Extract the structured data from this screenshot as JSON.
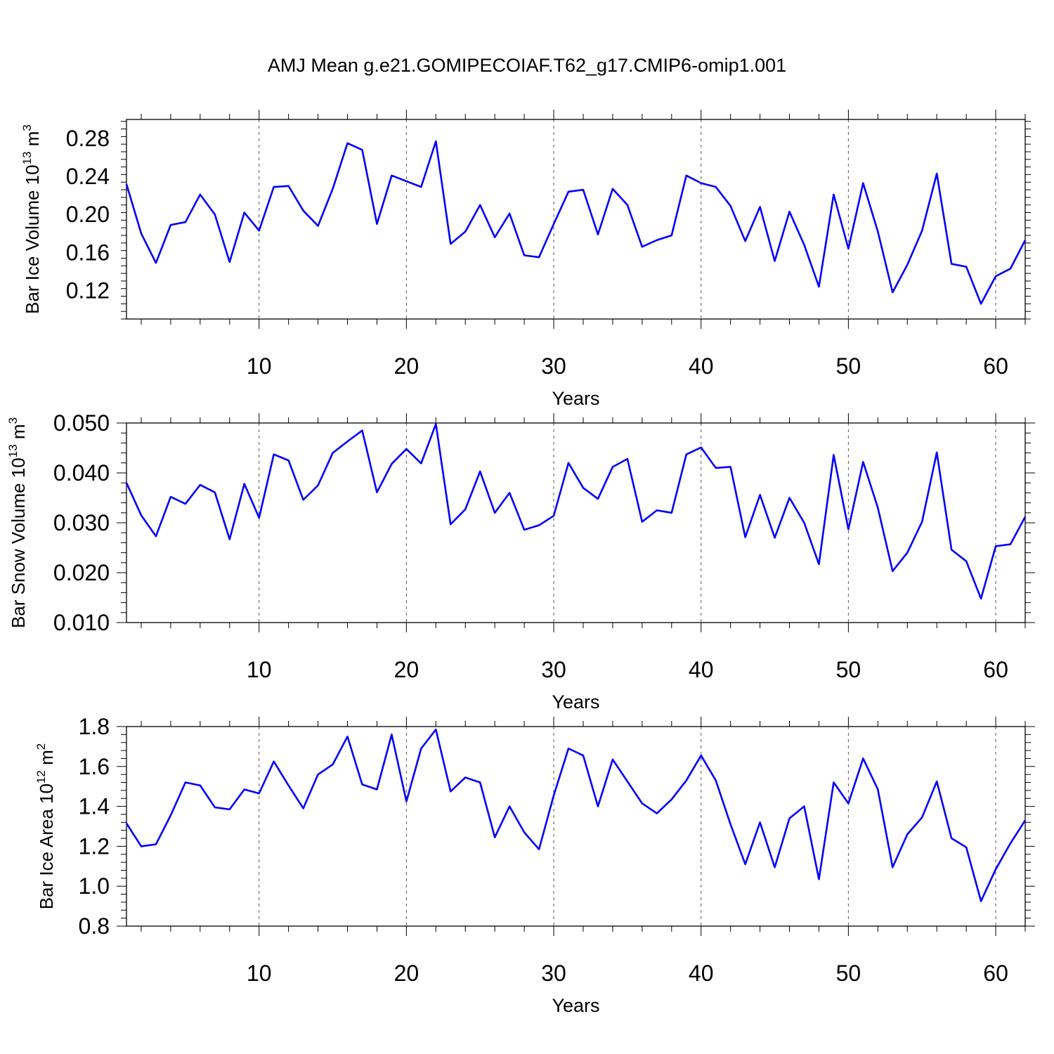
{
  "title": "AMJ Mean g.e21.GOMIPECOIAF.T62_g17.CMIP6-omip1.001",
  "colors": {
    "line": "#0000ff",
    "axis": "#000000",
    "grid": "#555555"
  },
  "chart_data": [
    {
      "type": "line",
      "ylabel": "Bar Ice Volume 10",
      "ylabel_exp": "13",
      "ylabel_unit": " m",
      "ylabel_unit_exp": "3",
      "xlabel": "Years",
      "xlim": [
        1,
        62
      ],
      "ylim": [
        0.09,
        0.3
      ],
      "yticks": [
        "0.12",
        "0.16",
        "0.20",
        "0.24",
        "0.28"
      ],
      "xticks": [
        "10",
        "20",
        "30",
        "40",
        "50",
        "60"
      ],
      "series": [
        {
          "name": "Bar Ice Volume",
          "values": [
            0.232,
            0.18,
            0.149,
            0.189,
            0.192,
            0.221,
            0.2,
            0.15,
            0.202,
            0.183,
            0.229,
            0.23,
            0.204,
            0.188,
            0.227,
            0.275,
            0.268,
            0.19,
            0.241,
            0.235,
            0.229,
            0.277,
            0.169,
            0.182,
            0.21,
            0.176,
            0.201,
            0.157,
            0.155,
            0.19,
            0.224,
            0.226,
            0.179,
            0.227,
            0.21,
            0.166,
            0.173,
            0.178,
            0.241,
            0.233,
            0.229,
            0.209,
            0.172,
            0.208,
            0.151,
            0.203,
            0.168,
            0.124,
            0.221,
            0.164,
            0.233,
            0.182,
            0.118,
            0.147,
            0.183,
            0.243,
            0.148,
            0.145,
            0.106,
            0.135,
            0.143,
            0.173
          ]
        }
      ]
    },
    {
      "type": "line",
      "ylabel": "Bar Snow Volume 10",
      "ylabel_exp": "13",
      "ylabel_unit": " m",
      "ylabel_unit_exp": "3",
      "xlabel": "Years",
      "xlim": [
        1,
        62
      ],
      "ylim": [
        0.01,
        0.05
      ],
      "yticks": [
        "0.010",
        "0.020",
        "0.030",
        "0.040",
        "0.050"
      ],
      "xticks": [
        "10",
        "20",
        "30",
        "40",
        "50",
        "60"
      ],
      "series": [
        {
          "name": "Bar Snow Volume",
          "values": [
            0.038,
            0.0315,
            0.0273,
            0.0352,
            0.0338,
            0.0376,
            0.0361,
            0.0267,
            0.0378,
            0.031,
            0.0437,
            0.0425,
            0.0346,
            0.0375,
            0.044,
            0.0463,
            0.0485,
            0.0361,
            0.0418,
            0.0448,
            0.0419,
            0.0498,
            0.0297,
            0.0327,
            0.0403,
            0.032,
            0.036,
            0.0286,
            0.0295,
            0.0314,
            0.042,
            0.037,
            0.0348,
            0.0412,
            0.0428,
            0.0302,
            0.0325,
            0.032,
            0.0437,
            0.0451,
            0.041,
            0.0412,
            0.0271,
            0.0356,
            0.027,
            0.035,
            0.03,
            0.0217,
            0.0436,
            0.0287,
            0.0422,
            0.033,
            0.0203,
            0.024,
            0.0302,
            0.0441,
            0.0246,
            0.0223,
            0.0148,
            0.0253,
            0.0257,
            0.0312
          ]
        }
      ]
    },
    {
      "type": "line",
      "ylabel": "Bar Ice Area 10",
      "ylabel_exp": "12",
      "ylabel_unit": " m",
      "ylabel_unit_exp": "2",
      "xlabel": "Years",
      "xlim": [
        1,
        62
      ],
      "ylim": [
        0.8,
        1.8
      ],
      "yticks": [
        "0.8",
        "1.0",
        "1.2",
        "1.4",
        "1.6",
        "1.8"
      ],
      "xticks": [
        "10",
        "20",
        "30",
        "40",
        "50",
        "60"
      ],
      "series": [
        {
          "name": "Bar Ice Area",
          "values": [
            1.315,
            1.2,
            1.21,
            1.355,
            1.52,
            1.505,
            1.395,
            1.385,
            1.485,
            1.465,
            1.625,
            1.505,
            1.39,
            1.56,
            1.61,
            1.75,
            1.51,
            1.485,
            1.76,
            1.425,
            1.69,
            1.785,
            1.475,
            1.545,
            1.52,
            1.245,
            1.4,
            1.27,
            1.185,
            1.455,
            1.69,
            1.655,
            1.4,
            1.635,
            1.525,
            1.415,
            1.365,
            1.435,
            1.53,
            1.655,
            1.53,
            1.31,
            1.11,
            1.32,
            1.095,
            1.34,
            1.4,
            1.035,
            1.52,
            1.415,
            1.64,
            1.485,
            1.095,
            1.26,
            1.345,
            1.525,
            1.24,
            1.195,
            0.925,
            1.085,
            1.215,
            1.33
          ]
        }
      ]
    }
  ]
}
